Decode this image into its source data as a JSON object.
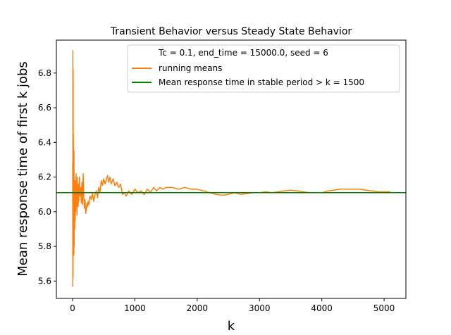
{
  "chart_data": {
    "type": "line",
    "title": "Transient Behavior versus Steady State Behavior",
    "xlabel": "k",
    "ylabel": "Mean response time of first k jobs",
    "xlim": [
      -260,
      5350
    ],
    "ylim": [
      5.5,
      6.99
    ],
    "x_ticks": [
      0,
      1000,
      2000,
      3000,
      4000,
      5000
    ],
    "x_tick_labels": [
      "0",
      "1000",
      "2000",
      "3000",
      "4000",
      "5000"
    ],
    "y_ticks": [
      5.6,
      5.8,
      6.0,
      6.2,
      6.4,
      6.6,
      6.8
    ],
    "y_tick_labels": [
      "5.6",
      "5.8",
      "6.0",
      "6.2",
      "6.4",
      "6.6",
      "6.8"
    ],
    "grid": false,
    "legend": {
      "placement": "top-right",
      "entries": [
        {
          "label": "Tc = 0.1, end_time = 15000.0, seed = 6",
          "marker": "none"
        },
        {
          "label": "running means",
          "color": "#ff7f0e"
        },
        {
          "label": "Mean response time in stable period > k = 1500",
          "color": "#008000"
        }
      ]
    },
    "series": [
      {
        "name": "running means",
        "color": "#ff7f0e",
        "x": [
          1,
          3,
          5,
          7,
          9,
          11,
          13,
          15,
          17,
          20,
          23,
          26,
          30,
          34,
          38,
          42,
          46,
          50,
          55,
          60,
          65,
          70,
          75,
          80,
          85,
          90,
          95,
          100,
          110,
          120,
          130,
          140,
          150,
          160,
          170,
          180,
          190,
          200,
          210,
          220,
          230,
          240,
          250,
          260,
          280,
          300,
          320,
          340,
          360,
          380,
          400,
          420,
          440,
          460,
          480,
          500,
          520,
          540,
          560,
          580,
          600,
          620,
          650,
          680,
          710,
          740,
          770,
          800,
          830,
          860,
          900,
          950,
          1000,
          1050,
          1100,
          1150,
          1200,
          1250,
          1300,
          1350,
          1400,
          1450,
          1500,
          1600,
          1700,
          1800,
          1900,
          2000,
          2100,
          2200,
          2300,
          2400,
          2500,
          2600,
          2700,
          2800,
          2900,
          3000,
          3100,
          3200,
          3300,
          3400,
          3500,
          3600,
          3700,
          3800,
          3900,
          4000,
          4100,
          4200,
          4300,
          4400,
          4500,
          4600,
          4700,
          4800,
          4900,
          5000,
          5100
        ],
        "y": [
          6.28,
          5.57,
          6.93,
          5.62,
          6.82,
          5.8,
          6.45,
          5.85,
          6.21,
          5.75,
          6.35,
          5.8,
          6.05,
          5.9,
          6.18,
          5.95,
          6.1,
          6.0,
          6.22,
          6.05,
          6.15,
          5.98,
          6.2,
          6.08,
          6.12,
          6.03,
          6.16,
          6.06,
          6.2,
          6.09,
          6.14,
          6.05,
          6.17,
          6.04,
          6.22,
          6.08,
          6.02,
          6.07,
          5.99,
          6.01,
          6.05,
          6.03,
          6.06,
          6.04,
          6.09,
          6.07,
          6.11,
          6.06,
          6.1,
          6.12,
          6.08,
          6.14,
          6.11,
          6.18,
          6.15,
          6.19,
          6.16,
          6.18,
          6.21,
          6.17,
          6.2,
          6.16,
          6.19,
          6.15,
          6.17,
          6.14,
          6.16,
          6.1,
          6.11,
          6.09,
          6.12,
          6.1,
          6.13,
          6.11,
          6.12,
          6.1,
          6.13,
          6.11,
          6.14,
          6.12,
          6.14,
          6.13,
          6.14,
          6.14,
          6.13,
          6.14,
          6.13,
          6.13,
          6.12,
          6.11,
          6.1,
          6.095,
          6.1,
          6.11,
          6.1,
          6.105,
          6.11,
          6.11,
          6.115,
          6.11,
          6.115,
          6.12,
          6.125,
          6.12,
          6.115,
          6.11,
          6.11,
          6.11,
          6.12,
          6.125,
          6.13,
          6.13,
          6.13,
          6.13,
          6.125,
          6.12,
          6.115,
          6.115,
          6.115
        ]
      },
      {
        "name": "Mean response time in stable period > k = 1500",
        "color": "#008000",
        "type": "hline",
        "value": 6.11
      }
    ]
  }
}
